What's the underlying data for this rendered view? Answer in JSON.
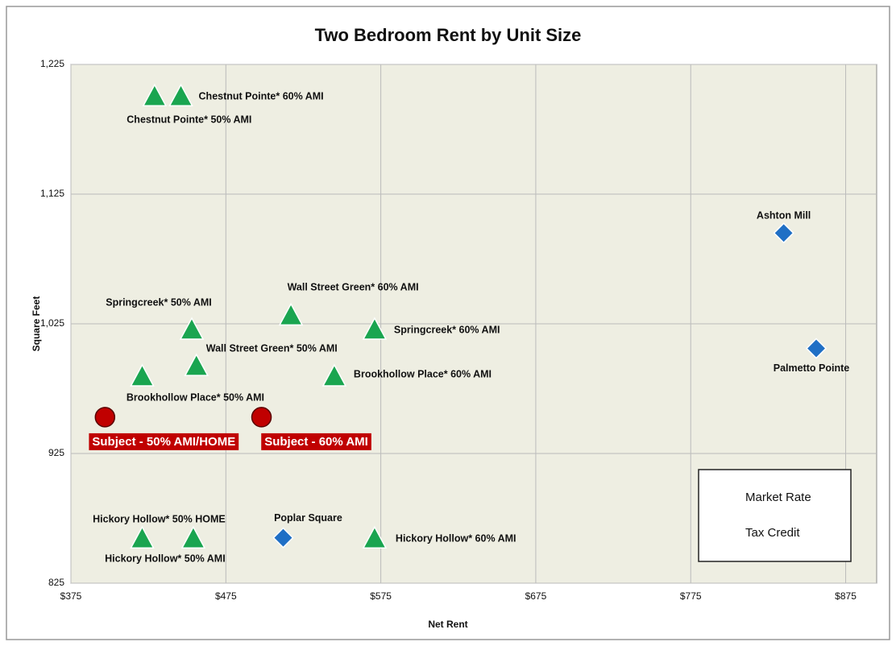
{
  "chart_data": {
    "type": "scatter",
    "title": "Two Bedroom Rent by Unit Size",
    "x_label": "Net Rent",
    "y_label": "Square Feet",
    "xlim": [
      375,
      895
    ],
    "ylim": [
      825,
      1225
    ],
    "xticks": [
      {
        "value": 375,
        "label": "$375"
      },
      {
        "value": 475,
        "label": "$475"
      },
      {
        "value": 575,
        "label": "$575"
      },
      {
        "value": 675,
        "label": "$675"
      },
      {
        "value": 775,
        "label": "$775"
      },
      {
        "value": 875,
        "label": "$875"
      }
    ],
    "yticks": [
      825,
      925,
      {
        "value": 1025,
        "label": "1,025"
      },
      {
        "value": 1125,
        "label": "1,125"
      },
      {
        "value": 1225,
        "label": "1,225"
      }
    ],
    "grid": true,
    "legend": "lower right",
    "series": [
      {
        "name": "Market Rate",
        "color": "#1f6fc5",
        "marker": "diamond",
        "points": [
          {
            "label": "Ashton Mill",
            "x": 835,
            "y": 1095
          },
          {
            "label": "Palmetto Pointe",
            "x": 856,
            "y": 1006
          },
          {
            "label": "Poplar Square",
            "x": 512,
            "y": 860
          }
        ]
      },
      {
        "name": "Tax Credit",
        "color": "#1aa550",
        "marker": "triangle",
        "points": [
          {
            "label": "Chestnut Pointe* 50% AMI",
            "x": 429,
            "y": 1200
          },
          {
            "label": "Chestnut Pointe* 60% AMI",
            "x": 446,
            "y": 1200
          },
          {
            "label": "Wall Street Green* 60% AMI",
            "x": 517,
            "y": 1031
          },
          {
            "label": "Springcreek* 50% AMI",
            "x": 453,
            "y": 1020
          },
          {
            "label": "Springcreek* 60% AMI",
            "x": 571,
            "y": 1020
          },
          {
            "label": "Wall Street Green* 50% AMI",
            "x": 456,
            "y": 992
          },
          {
            "label": "Brookhollow Place* 50% AMI",
            "x": 421,
            "y": 984
          },
          {
            "label": "Brookhollow Place* 60% AMI",
            "x": 545,
            "y": 984
          },
          {
            "label": "Hickory Hollow* 50% HOME",
            "x": 421,
            "y": 859
          },
          {
            "label": "Hickory Hollow* 50% AMI",
            "x": 454,
            "y": 859
          },
          {
            "label": "Hickory Hollow* 60% AMI",
            "x": 571,
            "y": 859
          }
        ]
      },
      {
        "color": "#c00000",
        "marker": "circle",
        "points": [
          {
            "label": "Subject - 50% AMI/HOME",
            "x": 397,
            "y": 953
          },
          {
            "label": "Subject - 60% AMI",
            "x": 498,
            "y": 953
          }
        ]
      }
    ]
  }
}
